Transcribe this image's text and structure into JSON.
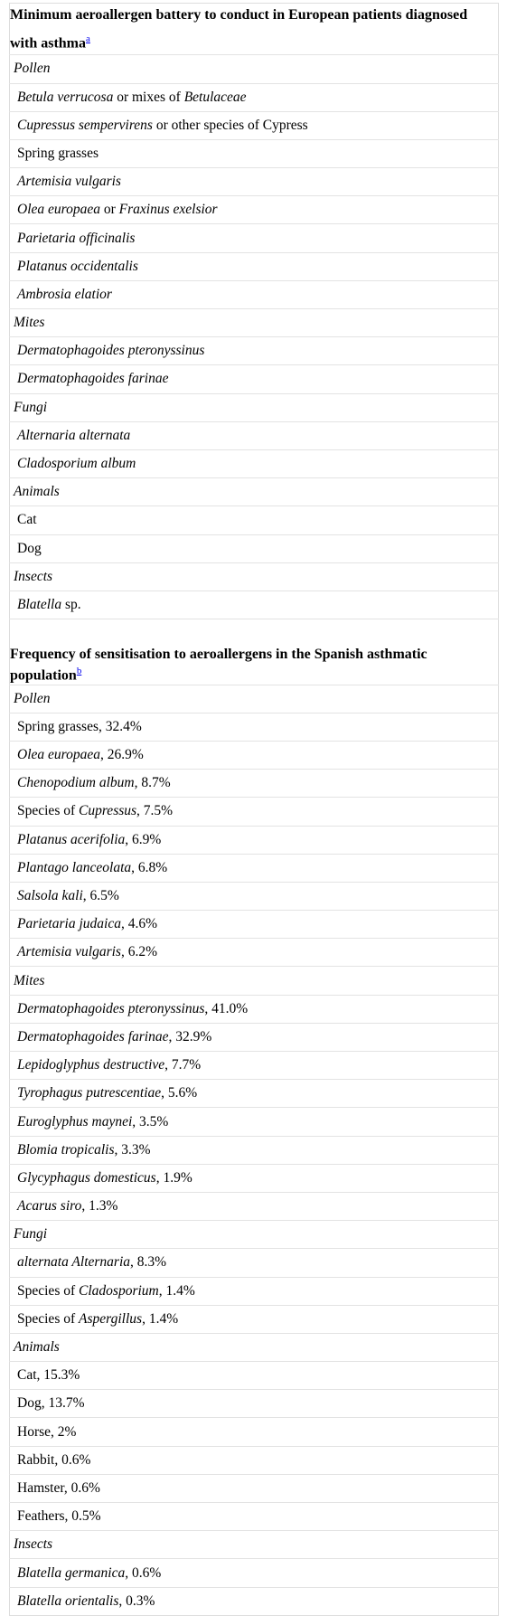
{
  "sections": [
    {
      "title": "Minimum aeroallergen battery to conduct in European patients diagnosed with asthma",
      "note": "a",
      "groups": [
        {
          "name": "Pollen",
          "items": [
            [
              {
                "text": "Betula verrucosa",
                "italic": true
              },
              {
                "text": " or mixes of "
              },
              {
                "text": "Betulaceae",
                "italic": true
              }
            ],
            [
              {
                "text": "Cupressus sempervirens",
                "italic": true
              },
              {
                "text": " or other species of Cypress"
              }
            ],
            [
              {
                "text": "Spring grasses"
              }
            ],
            [
              {
                "text": "Artemisia vulgaris",
                "italic": true
              }
            ],
            [
              {
                "text": "Olea europaea",
                "italic": true
              },
              {
                "text": " or "
              },
              {
                "text": "Fraxinus exelsior",
                "italic": true
              }
            ],
            [
              {
                "text": "Parietaria officinalis",
                "italic": true
              }
            ],
            [
              {
                "text": "Platanus occidentalis",
                "italic": true
              }
            ],
            [
              {
                "text": "Ambrosia elatior",
                "italic": true
              }
            ]
          ]
        },
        {
          "name": "Mites",
          "items": [
            [
              {
                "text": "Dermatophagoides pteronyssinus",
                "italic": true
              }
            ],
            [
              {
                "text": "Dermatophagoides farinae",
                "italic": true
              }
            ]
          ]
        },
        {
          "name": "Fungi",
          "items": [
            [
              {
                "text": "Alternaria alternata",
                "italic": true
              }
            ],
            [
              {
                "text": "Cladosporium album",
                "italic": true
              }
            ]
          ]
        },
        {
          "name": "Animals",
          "items": [
            [
              {
                "text": "Cat"
              }
            ],
            [
              {
                "text": "Dog"
              }
            ]
          ]
        },
        {
          "name": "Insects",
          "items": [
            [
              {
                "text": "Blatella",
                "italic": true
              },
              {
                "text": " sp."
              }
            ]
          ]
        }
      ]
    },
    {
      "title": "Frequency of sensitisation to aeroallergens in the Spanish asthmatic population",
      "note": "b",
      "groups": [
        {
          "name": "Pollen",
          "items": [
            [
              {
                "text": "Spring grasses, 32.4%"
              }
            ],
            [
              {
                "text": "Olea europaea",
                "italic": true
              },
              {
                "text": ", 26.9%"
              }
            ],
            [
              {
                "text": "Chenopodium album",
                "italic": true
              },
              {
                "text": ", 8.7%"
              }
            ],
            [
              {
                "text": "Species of "
              },
              {
                "text": "Cupressus",
                "italic": true
              },
              {
                "text": ", 7.5%"
              }
            ],
            [
              {
                "text": "Platanus acerifolia",
                "italic": true
              },
              {
                "text": ", 6.9%"
              }
            ],
            [
              {
                "text": "Plantago lanceolata",
                "italic": true
              },
              {
                "text": ", 6.8%"
              }
            ],
            [
              {
                "text": "Salsola kali",
                "italic": true
              },
              {
                "text": ", 6.5%"
              }
            ],
            [
              {
                "text": "Parietaria judaica",
                "italic": true
              },
              {
                "text": ", 4.6%"
              }
            ],
            [
              {
                "text": "Artemisia vulgaris",
                "italic": true
              },
              {
                "text": ", 6.2%"
              }
            ]
          ]
        },
        {
          "name": "Mites",
          "items": [
            [
              {
                "text": "Dermatophagoides pteronyssinus",
                "italic": true
              },
              {
                "text": ", 41.0%"
              }
            ],
            [
              {
                "text": "Dermatophagoides farinae",
                "italic": true
              },
              {
                "text": ", 32.9%"
              }
            ],
            [
              {
                "text": "Lepidoglyphus destructive",
                "italic": true
              },
              {
                "text": ", 7.7%"
              }
            ],
            [
              {
                "text": "Tyrophagus putrescentiae",
                "italic": true
              },
              {
                "text": ", 5.6%"
              }
            ],
            [
              {
                "text": "Euroglyphus maynei",
                "italic": true
              },
              {
                "text": ", 3.5%"
              }
            ],
            [
              {
                "text": "Blomia tropicalis",
                "italic": true
              },
              {
                "text": ", 3.3%"
              }
            ],
            [
              {
                "text": "Glycyphagus domesticus",
                "italic": true
              },
              {
                "text": ", 1.9%"
              }
            ],
            [
              {
                "text": "Acarus siro",
                "italic": true
              },
              {
                "text": ", 1.3%"
              }
            ]
          ]
        },
        {
          "name": "Fungi",
          "items": [
            [
              {
                "text": "alternata Alternaria",
                "italic": true
              },
              {
                "text": ", 8.3%"
              }
            ],
            [
              {
                "text": "Species of "
              },
              {
                "text": "Cladosporium",
                "italic": true
              },
              {
                "text": ", 1.4%"
              }
            ],
            [
              {
                "text": "Species of "
              },
              {
                "text": "Aspergillus",
                "italic": true
              },
              {
                "text": ", 1.4%"
              }
            ]
          ]
        },
        {
          "name": "Animals",
          "items": [
            [
              {
                "text": "Cat, 15.3%"
              }
            ],
            [
              {
                "text": "Dog, 13.7%"
              }
            ],
            [
              {
                "text": "Horse, 2%"
              }
            ],
            [
              {
                "text": "Rabbit, 0.6%"
              }
            ],
            [
              {
                "text": "Hamster, 0.6%"
              }
            ],
            [
              {
                "text": "Feathers, 0.5%"
              }
            ]
          ]
        },
        {
          "name": "Insects",
          "items": [
            [
              {
                "text": "Blatella germanica",
                "italic": true
              },
              {
                "text": ", 0.6%"
              }
            ],
            [
              {
                "text": "Blatella orientalis",
                "italic": true
              },
              {
                "text": ", 0.3%"
              }
            ]
          ]
        }
      ]
    }
  ]
}
